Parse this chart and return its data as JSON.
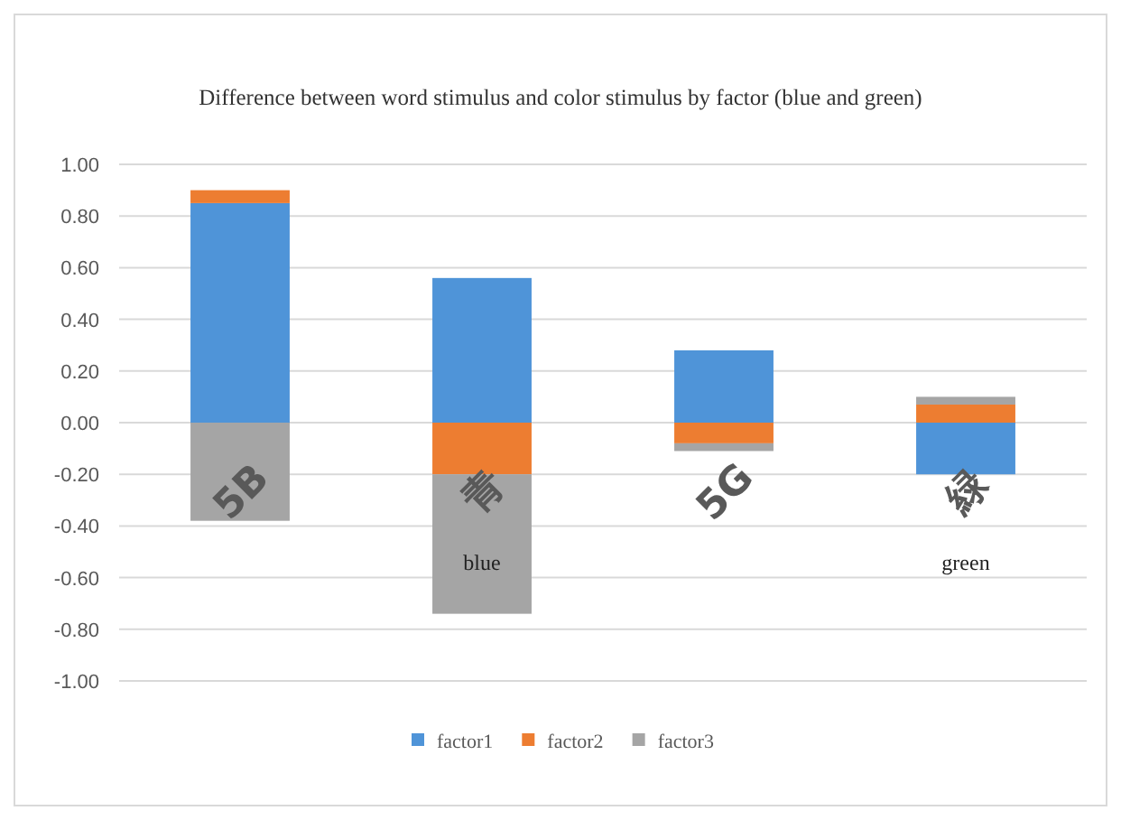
{
  "chart_data": {
    "type": "bar",
    "stacked": true,
    "title": "Difference between word stimulus and color stimulus by factor (blue and green)",
    "categories": [
      "5B",
      "青 blue",
      "5G",
      "緑 green"
    ],
    "series": [
      {
        "name": "factor1",
        "color": "#4f94d8",
        "values": [
          0.85,
          0.56,
          0.28,
          -0.2
        ]
      },
      {
        "name": "factor2",
        "color": "#ed7d31",
        "values": [
          0.05,
          -0.2,
          -0.08,
          0.07
        ]
      },
      {
        "name": "factor3",
        "color": "#a5a5a5",
        "values": [
          -0.38,
          -0.54,
          -0.03,
          0.03
        ]
      }
    ],
    "ylim": [
      -1,
      1
    ],
    "yticks": [
      {
        "value": 1,
        "label": "1.00"
      },
      {
        "value": 0.8,
        "label": "0.80"
      },
      {
        "value": 0.6,
        "label": "0.60"
      },
      {
        "value": 0.4,
        "label": "0.40"
      },
      {
        "value": 0.2,
        "label": "0.20"
      },
      {
        "value": 0,
        "label": "0.00"
      },
      {
        "value": -0.2,
        "label": "-0.20"
      },
      {
        "value": -0.4,
        "label": "-0.40"
      },
      {
        "value": -0.6,
        "label": "-0.60"
      },
      {
        "value": -0.8,
        "label": "-0.80"
      },
      {
        "value": -1,
        "label": "-1.00"
      }
    ],
    "grid": "y",
    "legend": "bottom"
  }
}
